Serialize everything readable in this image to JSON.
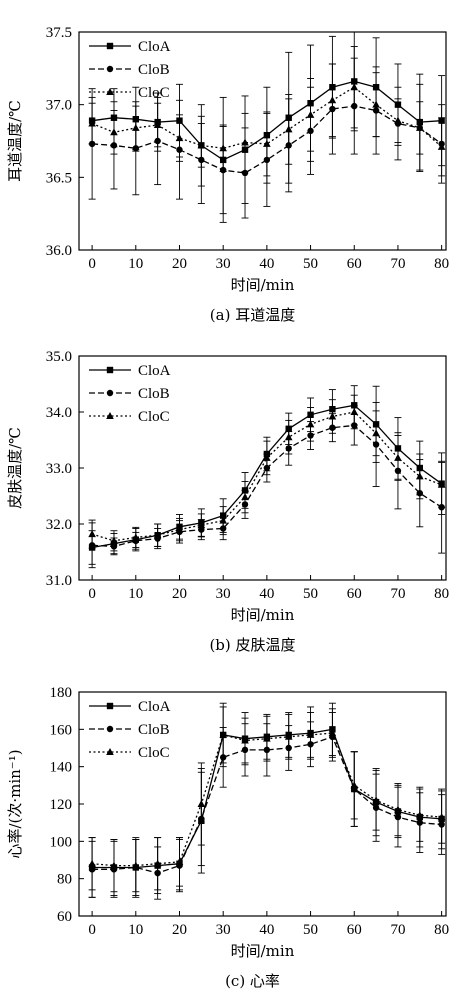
{
  "chart_data": [
    {
      "type": "line",
      "caption": "(a)  耳道温度",
      "xlabel": "时间/min",
      "ylabel": "耳道温度/℃",
      "xlim": [
        -3,
        81
      ],
      "ylim": [
        36.0,
        37.5
      ],
      "xticks": [
        0,
        10,
        20,
        30,
        40,
        50,
        60,
        70,
        80
      ],
      "yticks": [
        36.0,
        36.5,
        37.0,
        37.5
      ],
      "ytick_labels": [
        "36.0",
        "36.5",
        "37.0",
        "37.5"
      ],
      "legend_position": "top-left",
      "x": [
        0,
        5,
        10,
        15,
        20,
        25,
        30,
        35,
        40,
        45,
        50,
        55,
        60,
        65,
        70,
        75,
        80
      ],
      "series": [
        {
          "name": "CloA",
          "marker": "square",
          "dash": "solid",
          "values": [
            36.89,
            36.91,
            36.9,
            36.88,
            36.89,
            36.72,
            36.62,
            36.69,
            36.79,
            36.91,
            37.01,
            37.12,
            37.16,
            37.12,
            37.0,
            36.88,
            36.89
          ],
          "errors": [
            0.16,
            0.2,
            0.22,
            0.2,
            0.25,
            0.28,
            0.43,
            0.37,
            0.33,
            0.45,
            0.4,
            0.35,
            0.34,
            0.34,
            0.28,
            0.33,
            0.31
          ]
        },
        {
          "name": "CloB",
          "marker": "circle",
          "dash": "dashed",
          "values": [
            36.73,
            36.72,
            36.7,
            36.75,
            36.69,
            36.62,
            36.55,
            36.53,
            36.62,
            36.72,
            36.82,
            36.97,
            36.99,
            36.96,
            36.87,
            36.84,
            36.73
          ],
          "errors": [
            0.38,
            0.3,
            0.32,
            0.3,
            0.34,
            0.3,
            0.3,
            0.31,
            0.32,
            0.32,
            0.3,
            0.31,
            0.33,
            0.3,
            0.25,
            0.3,
            0.27
          ]
        },
        {
          "name": "CloC",
          "marker": "triangle",
          "dash": "dotted",
          "values": [
            36.87,
            36.81,
            36.84,
            36.86,
            36.77,
            36.72,
            36.7,
            36.74,
            36.73,
            36.83,
            36.93,
            37.03,
            37.12,
            37.0,
            36.89,
            36.84,
            36.71
          ],
          "errors": [
            0.14,
            0.15,
            0.15,
            0.15,
            0.16,
            0.15,
            0.16,
            0.2,
            0.22,
            0.24,
            0.25,
            0.25,
            0.28,
            0.22,
            0.15,
            0.18,
            0.2
          ]
        }
      ]
    },
    {
      "type": "line",
      "caption": "(b) 皮肤温度",
      "xlabel": "时间/min",
      "ylabel": "皮肤温度/℃",
      "xlim": [
        -3,
        81
      ],
      "ylim": [
        31.0,
        35.0
      ],
      "xticks": [
        0,
        10,
        20,
        30,
        40,
        50,
        60,
        70,
        80
      ],
      "yticks": [
        31.0,
        32.0,
        33.0,
        34.0,
        35.0
      ],
      "ytick_labels": [
        "31.0",
        "32.0",
        "33.0",
        "34.0",
        "35.0"
      ],
      "legend_position": "top-left",
      "x": [
        0,
        5,
        10,
        15,
        20,
        25,
        30,
        35,
        40,
        45,
        50,
        55,
        60,
        65,
        70,
        75,
        80
      ],
      "series": [
        {
          "name": "CloA",
          "marker": "square",
          "dash": "solid",
          "values": [
            31.58,
            31.65,
            31.72,
            31.8,
            31.95,
            32.02,
            32.15,
            32.6,
            33.25,
            33.7,
            33.95,
            34.05,
            34.12,
            33.78,
            33.35,
            33.0,
            32.72
          ],
          "errors": [
            0.3,
            0.18,
            0.2,
            0.2,
            0.22,
            0.25,
            0.3,
            0.32,
            0.3,
            0.28,
            0.3,
            0.35,
            0.35,
            0.68,
            0.55,
            0.48,
            0.55
          ]
        },
        {
          "name": "CloB",
          "marker": "circle",
          "dash": "dashed",
          "values": [
            31.62,
            31.6,
            31.7,
            31.74,
            31.86,
            31.9,
            31.92,
            32.35,
            33.0,
            33.35,
            33.58,
            33.72,
            33.76,
            33.42,
            32.95,
            32.55,
            32.3
          ],
          "errors": [
            0.4,
            0.15,
            0.15,
            0.18,
            0.2,
            0.18,
            0.2,
            0.25,
            0.25,
            0.3,
            0.25,
            0.25,
            0.35,
            0.75,
            0.68,
            0.6,
            0.82
          ]
        },
        {
          "name": "CloC",
          "marker": "triangle",
          "dash": "dotted",
          "values": [
            31.82,
            31.7,
            31.76,
            31.8,
            31.9,
            31.98,
            32.06,
            32.48,
            33.18,
            33.55,
            33.78,
            33.92,
            34.0,
            33.62,
            33.18,
            32.85,
            32.7
          ],
          "errors": [
            0.25,
            0.18,
            0.18,
            0.2,
            0.2,
            0.2,
            0.25,
            0.28,
            0.3,
            0.3,
            0.3,
            0.3,
            0.3,
            0.4,
            0.4,
            0.4,
            0.4
          ]
        }
      ]
    },
    {
      "type": "line",
      "caption": "(c)  心率",
      "xlabel": "时间/min",
      "ylabel": "心率/(次·min⁻¹)",
      "xlim": [
        -3,
        81
      ],
      "ylim": [
        60,
        180
      ],
      "xticks": [
        0,
        10,
        20,
        30,
        40,
        50,
        60,
        70,
        80
      ],
      "yticks": [
        60,
        80,
        100,
        120,
        140,
        160,
        180
      ],
      "ytick_labels": [
        "60",
        "80",
        "100",
        "120",
        "140",
        "160",
        "180"
      ],
      "legend_position": "top-left",
      "x": [
        0,
        5,
        10,
        15,
        20,
        25,
        30,
        35,
        40,
        45,
        50,
        55,
        60,
        65,
        70,
        75,
        80
      ],
      "series": [
        {
          "name": "CloA",
          "marker": "square",
          "dash": "solid",
          "values": [
            86,
            86,
            86,
            87,
            88,
            111,
            157,
            155,
            156,
            157,
            158,
            160,
            128,
            121,
            116,
            113,
            112
          ],
          "errors": [
            16,
            15,
            16,
            15,
            14,
            28,
            17,
            14,
            12,
            12,
            14,
            14,
            20,
            18,
            14,
            16,
            16
          ]
        },
        {
          "name": "CloB",
          "marker": "circle",
          "dash": "dashed",
          "values": [
            85,
            85,
            86,
            83,
            87,
            112,
            145,
            149,
            149,
            150,
            152,
            156,
            128,
            118,
            113,
            110,
            109
          ],
          "errors": [
            15,
            15,
            15,
            14,
            14,
            25,
            16,
            14,
            14,
            12,
            12,
            13,
            20,
            18,
            16,
            16,
            16
          ]
        },
        {
          "name": "CloC",
          "marker": "triangle",
          "dash": "dotted",
          "values": [
            88,
            87,
            87,
            88,
            89,
            120,
            157,
            154,
            155,
            156,
            157,
            158,
            130,
            122,
            117,
            114,
            113
          ],
          "errors": [
            14,
            14,
            14,
            14,
            13,
            22,
            15,
            12,
            12,
            12,
            12,
            13,
            18,
            16,
            14,
            14,
            14
          ]
        }
      ]
    }
  ]
}
